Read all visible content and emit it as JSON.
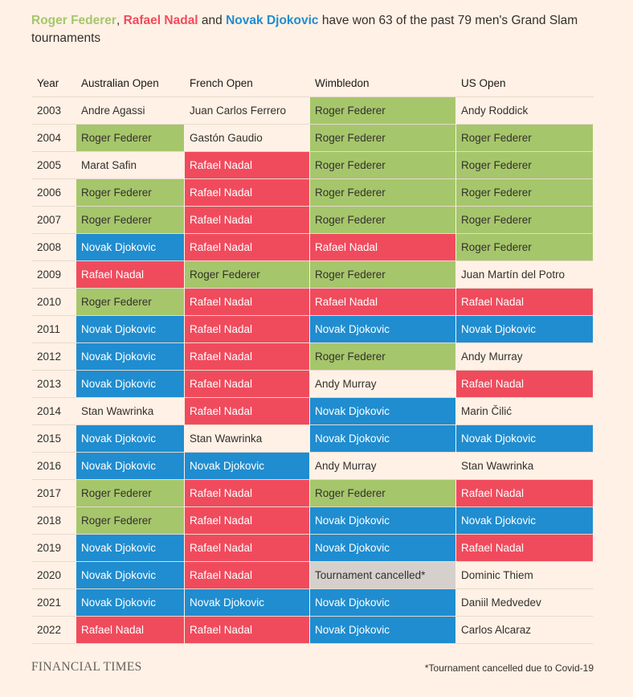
{
  "headline": {
    "federer": "Roger Federer",
    "sep1": ", ",
    "nadal": "Rafael Nadal",
    "sep2": " and ",
    "djokovic": "Novak Djokovic",
    "rest": " have won 63 of the past 79 men's Grand Slam tournaments"
  },
  "colors": {
    "federer": "#a6c66b",
    "nadal": "#f04b5d",
    "djokovic": "#1f8dd0",
    "cancelled": "#d5d0cc",
    "background": "#fff1e5"
  },
  "chart_data": {
    "type": "table",
    "title": "Roger Federer, Rafael Nadal and Novak Djokovic have won 63 of the past 79 men's Grand Slam tournaments",
    "columns": [
      "Year",
      "Australian Open",
      "French Open",
      "Wimbledon",
      "US Open"
    ],
    "rows": [
      [
        "2003",
        "Andre Agassi",
        "Juan Carlos Ferrero",
        "Roger Federer",
        "Andy Roddick"
      ],
      [
        "2004",
        "Roger Federer",
        "Gastón Gaudio",
        "Roger Federer",
        "Roger Federer"
      ],
      [
        "2005",
        "Marat Safin",
        "Rafael Nadal",
        "Roger Federer",
        "Roger Federer"
      ],
      [
        "2006",
        "Roger Federer",
        "Rafael Nadal",
        "Roger Federer",
        "Roger Federer"
      ],
      [
        "2007",
        "Roger Federer",
        "Rafael Nadal",
        "Roger Federer",
        "Roger Federer"
      ],
      [
        "2008",
        "Novak Djokovic",
        "Rafael Nadal",
        "Rafael Nadal",
        "Roger Federer"
      ],
      [
        "2009",
        "Rafael Nadal",
        "Roger Federer",
        "Roger Federer",
        "Juan Martín del Potro"
      ],
      [
        "2010",
        "Roger Federer",
        "Rafael Nadal",
        "Rafael Nadal",
        "Rafael Nadal"
      ],
      [
        "2011",
        "Novak Djokovic",
        "Rafael Nadal",
        "Novak Djokovic",
        "Novak Djokovic"
      ],
      [
        "2012",
        "Novak Djokovic",
        "Rafael Nadal",
        "Roger Federer",
        "Andy Murray"
      ],
      [
        "2013",
        "Novak Djokovic",
        "Rafael Nadal",
        "Andy Murray",
        "Rafael Nadal"
      ],
      [
        "2014",
        "Stan Wawrinka",
        "Rafael Nadal",
        "Novak Djokovic",
        "Marin Čilić"
      ],
      [
        "2015",
        "Novak Djokovic",
        "Stan Wawrinka",
        "Novak Djokovic",
        "Novak Djokovic"
      ],
      [
        "2016",
        "Novak Djokovic",
        "Novak Djokovic",
        "Andy Murray",
        "Stan Wawrinka"
      ],
      [
        "2017",
        "Roger Federer",
        "Rafael Nadal",
        "Roger Federer",
        "Rafael Nadal"
      ],
      [
        "2018",
        "Roger Federer",
        "Rafael Nadal",
        "Novak Djokovic",
        "Novak Djokovic"
      ],
      [
        "2019",
        "Novak Djokovic",
        "Rafael Nadal",
        "Novak Djokovic",
        "Rafael Nadal"
      ],
      [
        "2020",
        "Novak Djokovic",
        "Rafael Nadal",
        "Tournament cancelled*",
        "Dominic Thiem"
      ],
      [
        "2021",
        "Novak Djokovic",
        "Novak Djokovic",
        "Novak Djokovic",
        "Daniil Medvedev"
      ],
      [
        "2022",
        "Rafael Nadal",
        "Rafael Nadal",
        "Novak Djokovic",
        "Carlos Alcaraz"
      ]
    ]
  },
  "footer": {
    "source": "FINANCIAL TIMES",
    "note": "*Tournament cancelled due to Covid-19"
  }
}
